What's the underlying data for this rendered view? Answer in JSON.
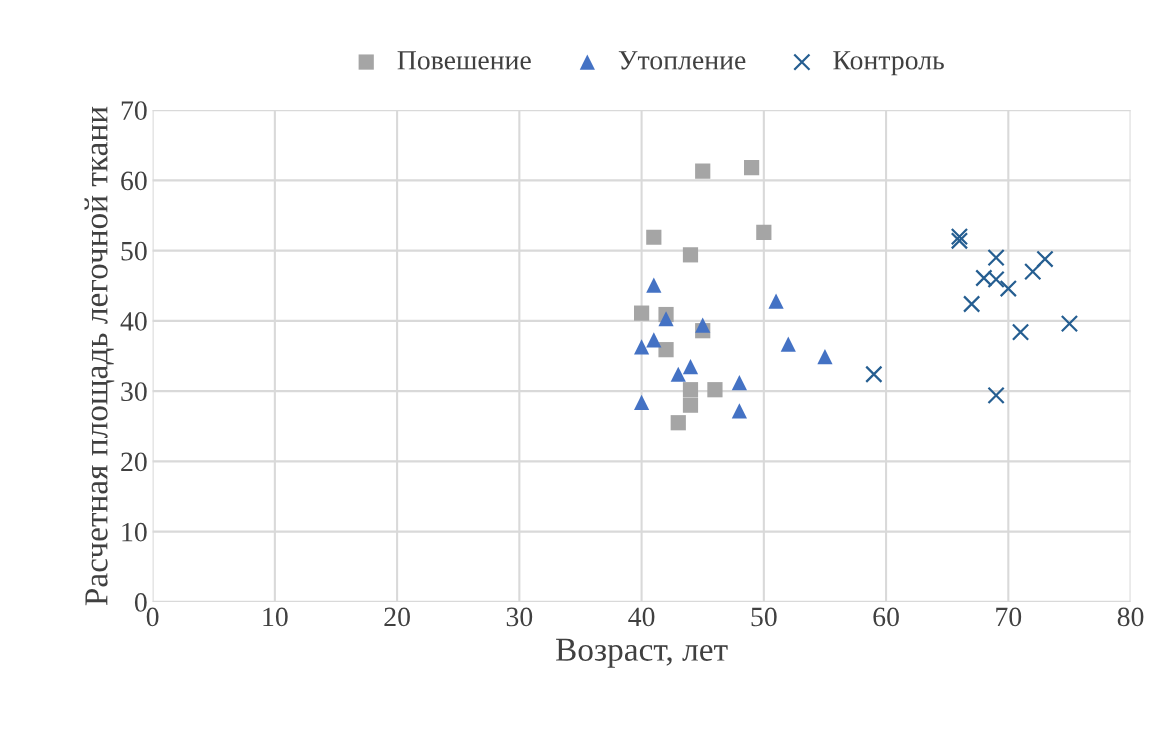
{
  "chart_data": {
    "type": "scatter",
    "xlabel": "Возраст, лет",
    "ylabel": "Расчетная площадь легочной ткани",
    "xlim": [
      0,
      80
    ],
    "xticks": [
      0,
      10,
      20,
      30,
      40,
      50,
      60,
      70,
      80
    ],
    "ylim": [
      0,
      70
    ],
    "yticks": [
      0,
      10,
      20,
      30,
      40,
      50,
      60,
      70
    ],
    "grid": true,
    "legend": "top",
    "series": [
      {
        "name": "Повешение",
        "color": "#a5a5a5",
        "marker": "square",
        "x": [
          45,
          49,
          41,
          50,
          44,
          40,
          42,
          45,
          42,
          44,
          44,
          46,
          43
        ],
        "values": [
          61.3,
          61.8,
          51.9,
          52.6,
          49.4,
          41.1,
          40.9,
          38.6,
          35.9,
          30.2,
          28,
          30.2,
          25.5
        ]
      },
      {
        "name": "Утопление",
        "color": "#4472c4",
        "marker": "triangle",
        "x": [
          41,
          51,
          42,
          45,
          40,
          41,
          52,
          55,
          43,
          44,
          48,
          40,
          48
        ],
        "values": [
          45.1,
          42.8,
          40.3,
          39.4,
          36.3,
          37.3,
          36.7,
          34.9,
          32.4,
          33.5,
          31.2,
          28.4,
          27.2
        ]
      },
      {
        "name": "Контроль",
        "color": "#255e91",
        "marker": "cross",
        "x": [
          66,
          66,
          69,
          73,
          72,
          68,
          69,
          70,
          67,
          71,
          75,
          59,
          69
        ],
        "values": [
          52,
          51.4,
          49,
          48.8,
          47,
          46.1,
          45.9,
          44.6,
          42.4,
          38.4,
          39.6,
          32.4,
          29.4
        ]
      }
    ]
  }
}
